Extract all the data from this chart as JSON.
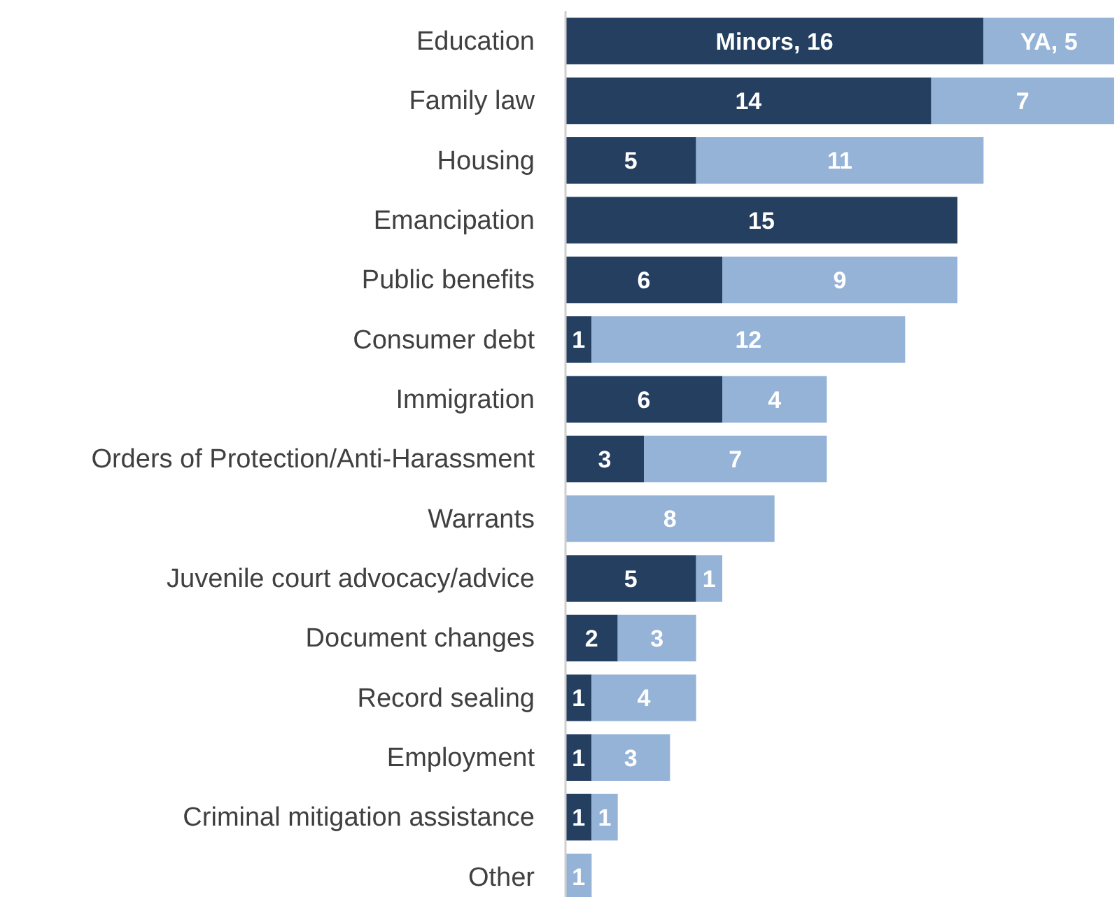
{
  "chart_data": {
    "type": "bar",
    "orientation": "horizontal",
    "stacked": true,
    "categories": [
      "Education",
      "Family law",
      "Housing",
      "Emancipation",
      "Public benefits",
      "Consumer debt",
      "Immigration",
      "Orders of Protection/Anti-Harassment",
      "Warrants",
      "Juvenile court advocacy/advice",
      "Document changes",
      "Record sealing",
      "Employment",
      "Criminal mitigation assistance",
      "Other"
    ],
    "series": [
      {
        "name": "Minors",
        "color": "#243f60",
        "values": [
          16,
          14,
          5,
          15,
          6,
          1,
          6,
          3,
          null,
          5,
          2,
          1,
          1,
          1,
          null
        ],
        "value_labels": [
          ", 16",
          "14",
          "5",
          "15",
          "6",
          "1",
          "6",
          "3",
          null,
          "5",
          "2",
          "1",
          "1",
          "1",
          null
        ]
      },
      {
        "name": "YA",
        "color": "#95b3d7",
        "values": [
          5,
          7,
          11,
          null,
          9,
          12,
          4,
          7,
          8,
          1,
          3,
          4,
          3,
          1,
          1
        ],
        "value_labels": [
          ", 5",
          "7",
          "11",
          null,
          "9",
          "12",
          "4",
          "7",
          "8",
          "1",
          "3",
          "4",
          "3",
          "1",
          "1"
        ]
      }
    ],
    "legend": false
  }
}
